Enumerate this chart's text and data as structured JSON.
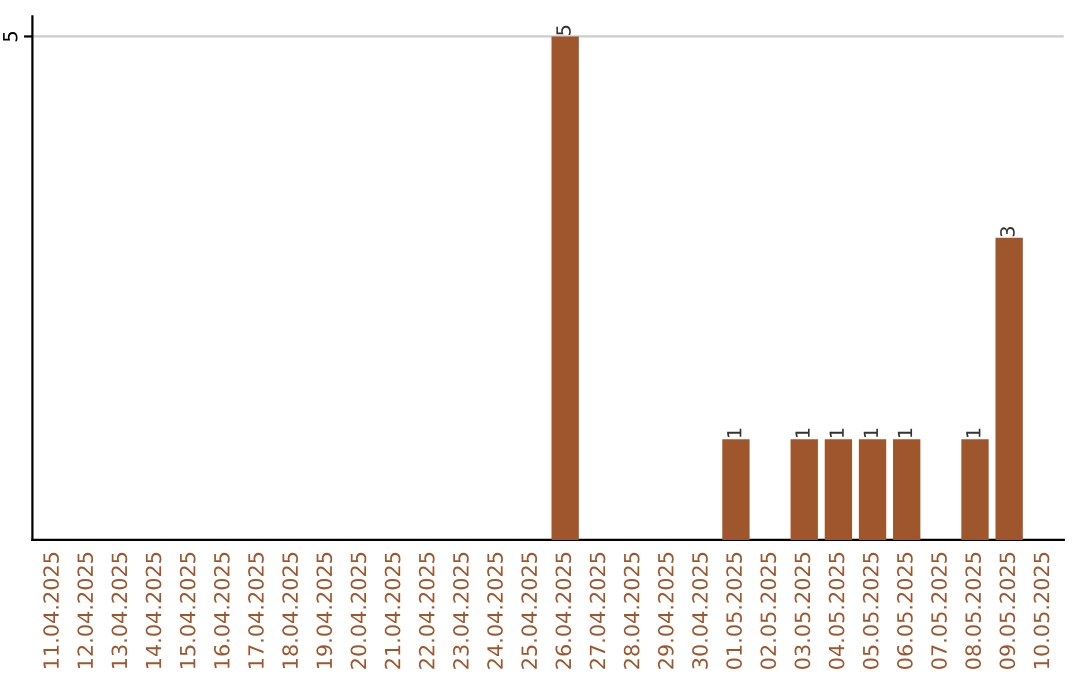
{
  "chart_data": {
    "type": "bar",
    "categories": [
      "11.04.2025",
      "12.04.2025",
      "13.04.2025",
      "14.04.2025",
      "15.04.2025",
      "16.04.2025",
      "17.04.2025",
      "18.04.2025",
      "19.04.2025",
      "20.04.2025",
      "21.04.2025",
      "22.04.2025",
      "23.04.2025",
      "24.04.2025",
      "25.04.2025",
      "26.04.2025",
      "27.04.2025",
      "28.04.2025",
      "29.04.2025",
      "30.04.2025",
      "01.05.2025",
      "02.05.2025",
      "03.05.2025",
      "04.05.2025",
      "05.05.2025",
      "06.05.2025",
      "07.05.2025",
      "08.05.2025",
      "09.05.2025",
      "10.05.2025"
    ],
    "values": [
      null,
      null,
      null,
      null,
      null,
      null,
      null,
      null,
      null,
      null,
      null,
      null,
      null,
      null,
      null,
      5,
      null,
      null,
      null,
      null,
      1,
      null,
      1,
      1,
      1,
      1,
      null,
      1,
      3,
      null
    ],
    "color": "#a0562c",
    "ylim": [
      0,
      5.2
    ],
    "yticks": [
      5
    ],
    "grid": "y",
    "data_labels": true
  }
}
